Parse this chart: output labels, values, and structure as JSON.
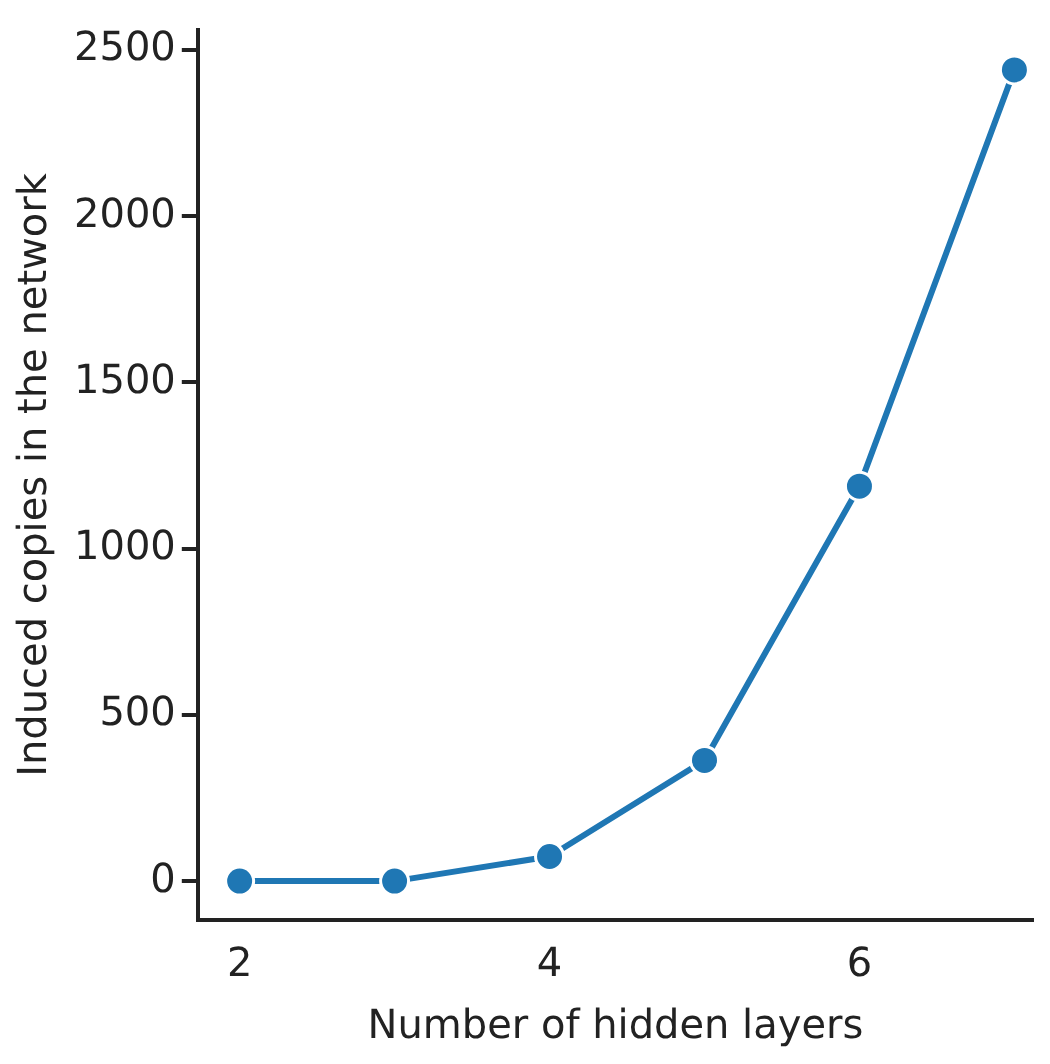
{
  "chart_data": {
    "type": "line",
    "xlabel": "Number of hidden layers",
    "ylabel": "Induced copies in the network",
    "x": [
      2,
      3,
      4,
      5,
      6,
      7
    ],
    "series": [
      {
        "color": "#1f77b4",
        "values": [
          0,
          0,
          74,
          363,
          1188,
          2440
        ]
      }
    ],
    "xlim": [
      1.73,
      7.12
    ],
    "xticks": [
      2,
      4,
      6
    ],
    "ylim": [
      -117,
      2560
    ],
    "yticks": [
      0,
      500,
      1000,
      1500,
      2000,
      2500
    ],
    "marker": "circle",
    "line_style": "solid",
    "grid": false,
    "legend": false
  }
}
